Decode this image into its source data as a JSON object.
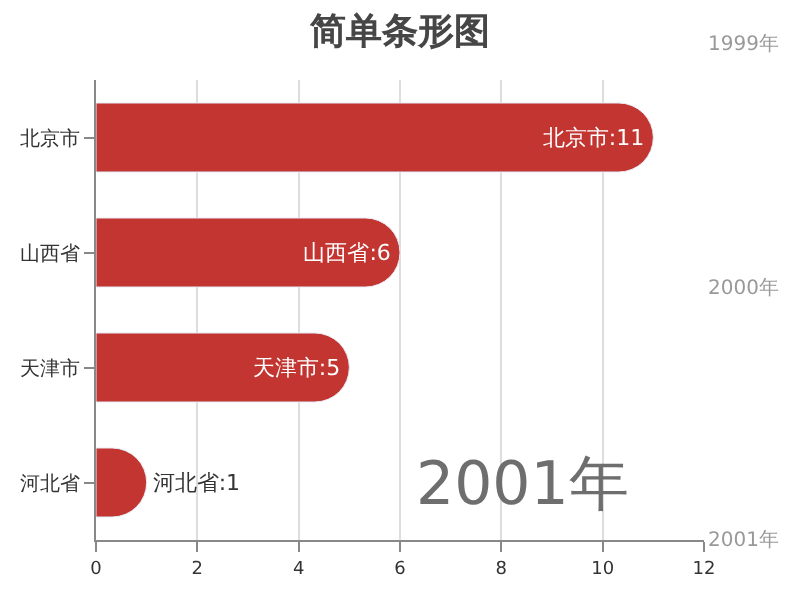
{
  "chart_data": {
    "type": "bar",
    "orientation": "horizontal",
    "title": "简单条形图",
    "categories": [
      "北京市",
      "山西省",
      "天津市",
      "河北省"
    ],
    "values": [
      11,
      6,
      5,
      1
    ],
    "value_labels": [
      "北京市:11",
      "山西省:6",
      "天津市:5",
      "河北省:1"
    ],
    "color": "#c23531",
    "xlim": [
      0,
      12
    ],
    "xticks": [
      0,
      2,
      4,
      6,
      8,
      10,
      12
    ],
    "grid": "x",
    "legend": false,
    "annotations": [
      "2001年",
      "1999年",
      "2000年",
      "2001年"
    ]
  }
}
